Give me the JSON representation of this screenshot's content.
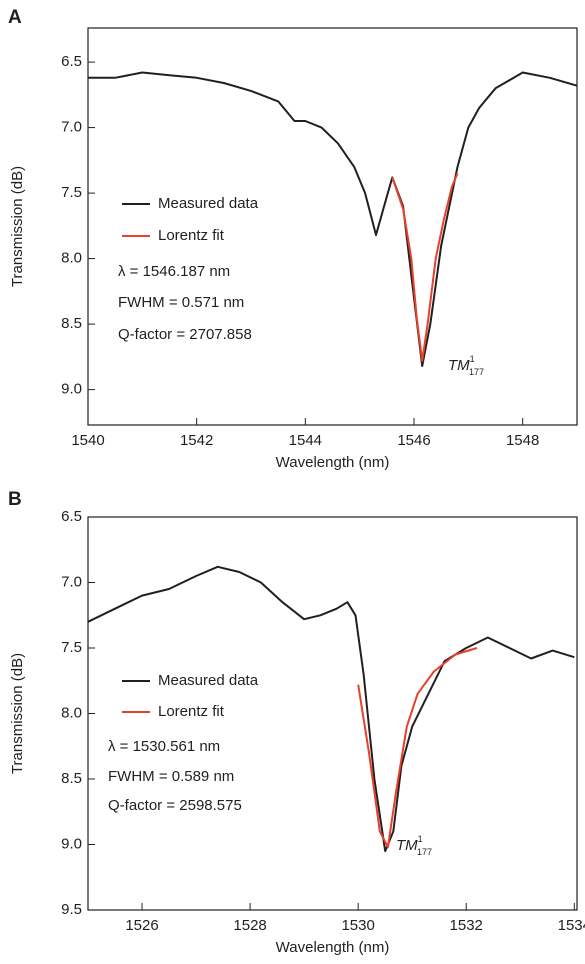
{
  "chart_data": [
    {
      "type": "line",
      "panel_label": "A",
      "x_label": "Wavelength (nm)",
      "y_label": "Transmission (dB)",
      "xlim": [
        1540,
        1549
      ],
      "xticks": [
        1540,
        1542,
        1544,
        1546,
        1548
      ],
      "ylim": [
        6.24,
        9.27
      ],
      "y_inverted": true,
      "yticks": [
        6.5,
        {
          "value": 7,
          "label": "7.0"
        },
        7.5,
        {
          "value": 8,
          "label": "8.0"
        },
        8.5,
        {
          "value": 9,
          "label": "9.0"
        }
      ],
      "series": [
        {
          "name": "Measured data",
          "color": "#231f20",
          "x": [
            1540,
            1540.5,
            1541,
            1541.5,
            1542,
            1542.5,
            1543,
            1543.5,
            1543.8,
            1544,
            1544.3,
            1544.6,
            1544.9,
            1545.1,
            1545.3,
            1545.45,
            1545.6,
            1545.8,
            1546.0,
            1546.15,
            1546.3,
            1546.5,
            1546.8,
            1547,
            1547.2,
            1547.5,
            1548,
            1548.5,
            1549
          ],
          "values": [
            6.62,
            6.62,
            6.58,
            6.6,
            6.62,
            6.66,
            6.72,
            6.8,
            6.95,
            6.95,
            7.0,
            7.12,
            7.3,
            7.5,
            7.82,
            7.6,
            7.38,
            7.6,
            8.3,
            8.82,
            8.5,
            7.9,
            7.3,
            7.0,
            6.85,
            6.7,
            6.58,
            6.62,
            6.68
          ]
        },
        {
          "name": "Lorentz fit",
          "color": "#e8402a",
          "x": [
            1545.6,
            1545.8,
            1545.95,
            1546.05,
            1546.15,
            1546.25,
            1546.4,
            1546.55,
            1546.7,
            1546.8
          ],
          "values": [
            7.38,
            7.62,
            8.0,
            8.45,
            8.78,
            8.5,
            8.0,
            7.7,
            7.45,
            7.35
          ]
        }
      ],
      "annotations": [
        "λ = 1546.187 nm",
        "FWHM = 0.571 nm",
        "Q-factor = 2707.858"
      ],
      "mode_label": {
        "text": "TM",
        "sup": "1",
        "sub": "177"
      }
    },
    {
      "type": "line",
      "panel_label": "B",
      "x_label": "Wavelength (nm)",
      "y_label": "Transmission (dB)",
      "xlim": [
        1525,
        1534.05
      ],
      "xticks": [
        1526,
        1528,
        1530,
        1532,
        1534
      ],
      "ylim": [
        6.5,
        9.5
      ],
      "y_inverted": true,
      "yticks": [
        6.5,
        {
          "value": 7,
          "label": "7.0"
        },
        7.5,
        {
          "value": 8,
          "label": "8.0"
        },
        8.5,
        {
          "value": 9,
          "label": "9.0"
        },
        9.5
      ],
      "series": [
        {
          "name": "Measured data",
          "color": "#231f20",
          "x": [
            1525,
            1525.5,
            1526,
            1526.5,
            1527,
            1527.4,
            1527.8,
            1528.2,
            1528.6,
            1529,
            1529.3,
            1529.6,
            1529.8,
            1529.95,
            1530.1,
            1530.3,
            1530.5,
            1530.65,
            1530.8,
            1531,
            1531.3,
            1531.6,
            1532,
            1532.4,
            1532.8,
            1533.2,
            1533.6,
            1534
          ],
          "values": [
            7.3,
            7.2,
            7.1,
            7.05,
            6.95,
            6.88,
            6.92,
            7.0,
            7.15,
            7.28,
            7.25,
            7.2,
            7.15,
            7.25,
            7.7,
            8.5,
            9.05,
            8.9,
            8.4,
            8.1,
            7.85,
            7.6,
            7.5,
            7.42,
            7.5,
            7.58,
            7.52,
            7.57
          ]
        },
        {
          "name": "Lorentz fit",
          "color": "#e8402a",
          "x": [
            1530,
            1530.2,
            1530.4,
            1530.55,
            1530.7,
            1530.9,
            1531.1,
            1531.4,
            1531.8,
            1532.2
          ],
          "values": [
            7.78,
            8.3,
            8.9,
            9.02,
            8.6,
            8.1,
            7.85,
            7.68,
            7.55,
            7.5
          ]
        }
      ],
      "annotations": [
        "λ = 1530.561 nm",
        "FWHM = 0.589 nm",
        "Q-factor = 2598.575"
      ],
      "mode_label": {
        "text": "TM",
        "sup": "1",
        "sub": "177"
      }
    }
  ]
}
